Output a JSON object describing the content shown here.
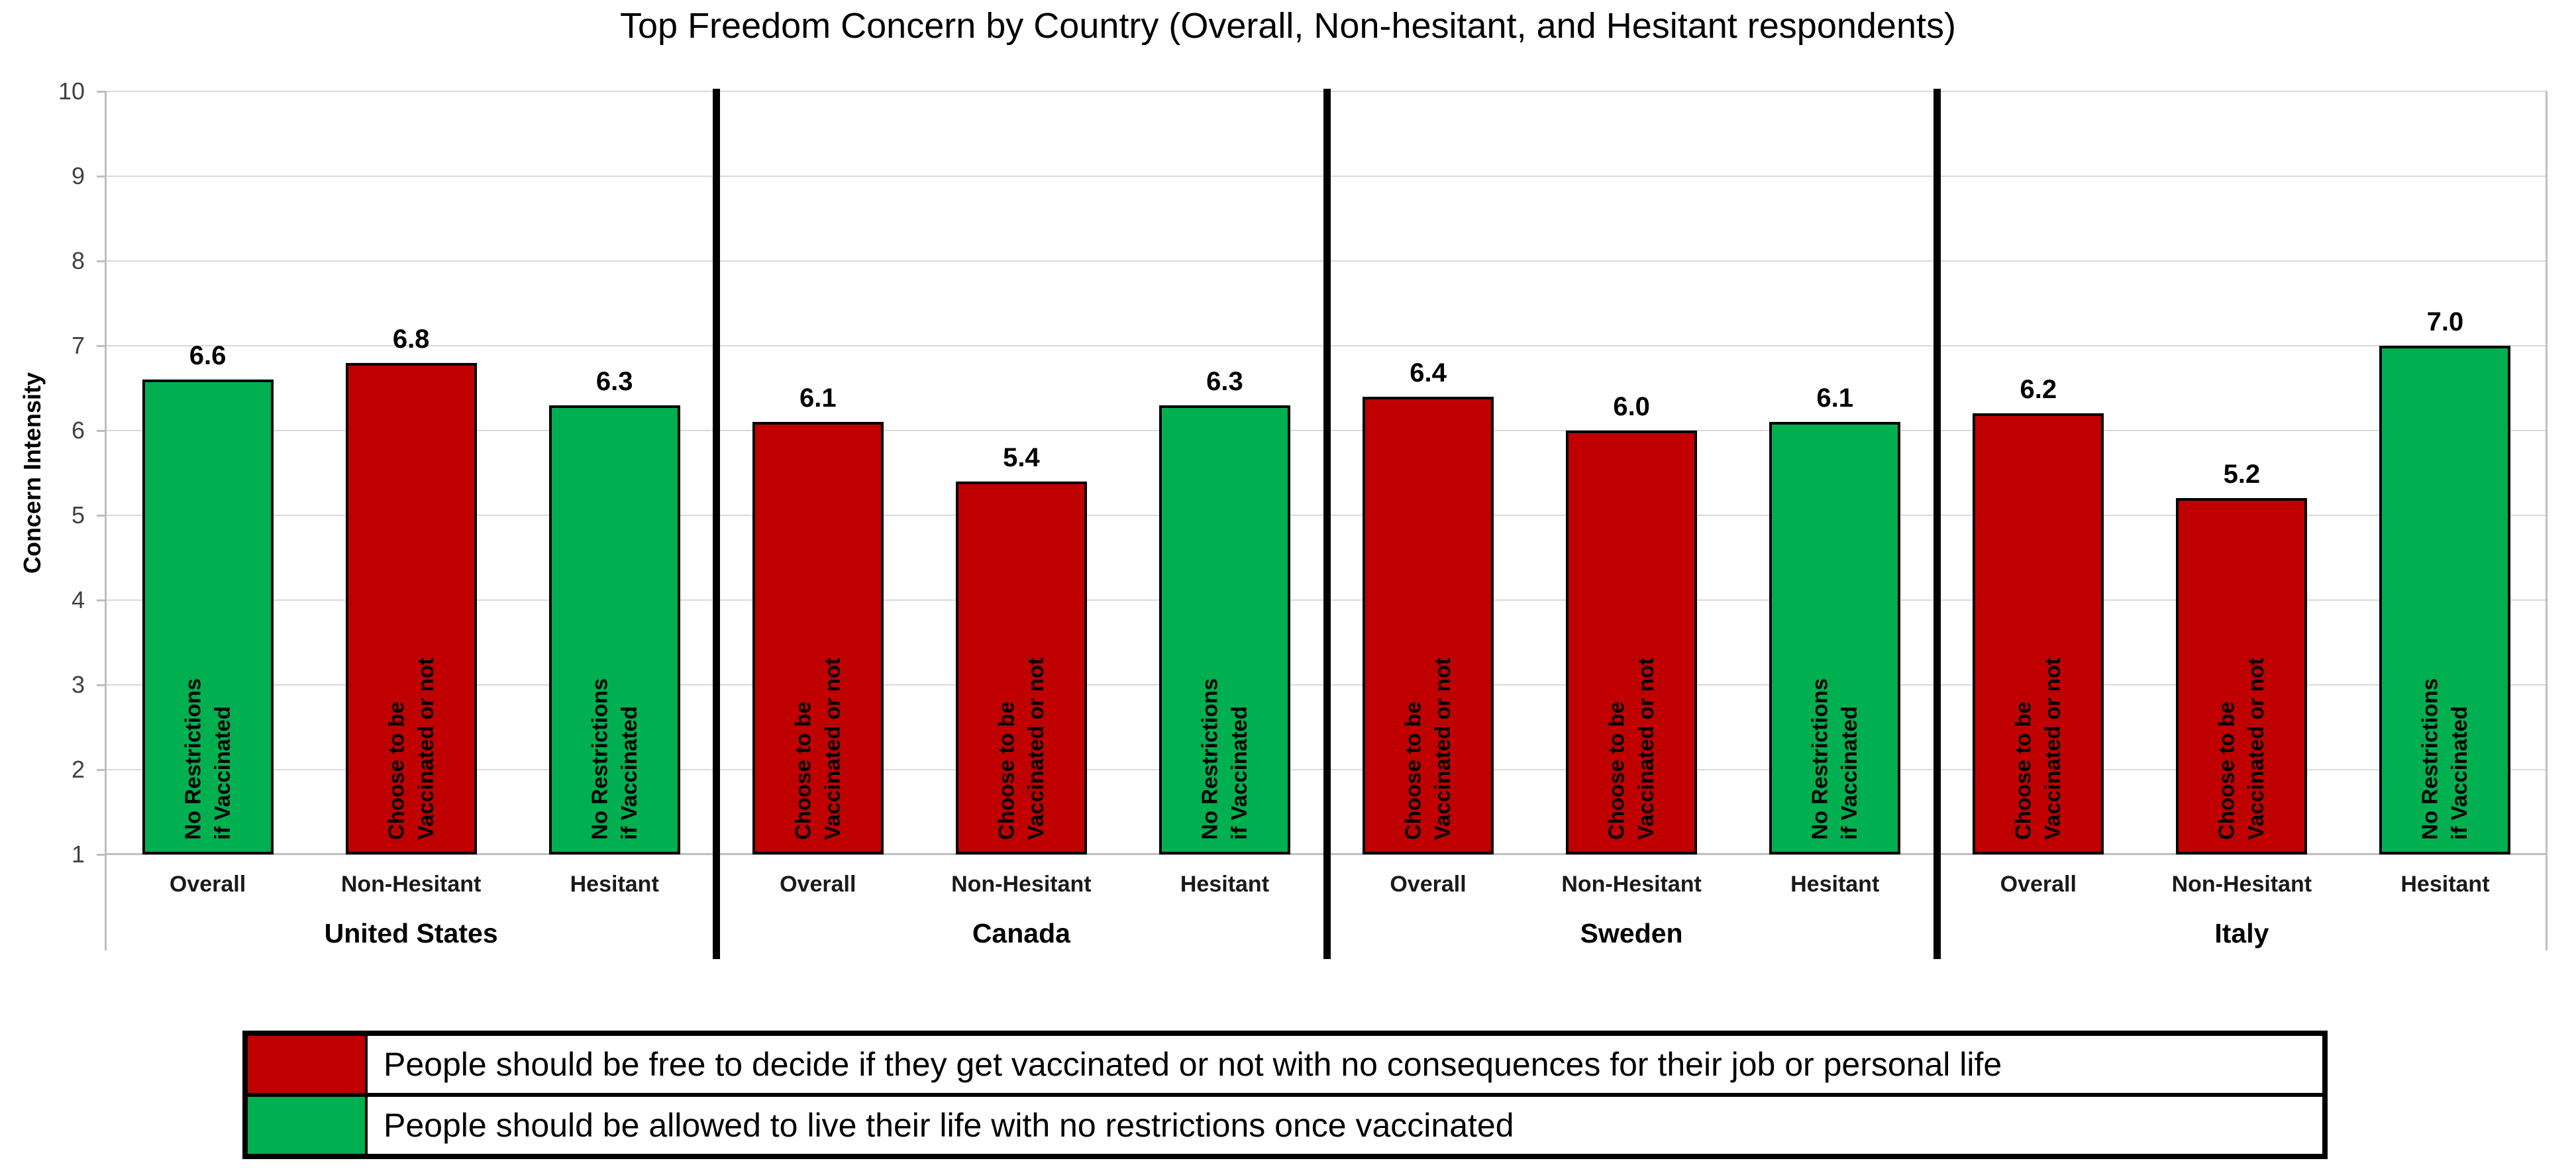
{
  "title": "Top Freedom Concern by Country (Overall, Non-hesitant, and Hesitant respondents)",
  "chart_data": {
    "type": "bar",
    "title": "Top Freedom Concern by Country (Overall, Non-hesitant, and Hesitant respondents)",
    "ylabel": "Concern Intensity",
    "xlabel": "",
    "ylim": [
      1,
      10
    ],
    "yticks": [
      1,
      2,
      3,
      4,
      5,
      6,
      7,
      8,
      9,
      10
    ],
    "grid": true,
    "legend_position": "bottom",
    "categories_per_group": [
      "Overall",
      "Non-Hesitant",
      "Hesitant"
    ],
    "colors": {
      "choose": "#C00000",
      "no_restrictions": "#00B050"
    },
    "bar_text": {
      "choose": [
        "Choose to be",
        "Vaccinated or not"
      ],
      "no_restrictions": [
        "No Restrictions",
        "if Vaccinated"
      ]
    },
    "groups": [
      {
        "country": "United States",
        "bars": [
          {
            "category": "Overall",
            "value": 6.6,
            "label": "6.6",
            "concern": "no_restrictions"
          },
          {
            "category": "Non-Hesitant",
            "value": 6.8,
            "label": "6.8",
            "concern": "choose"
          },
          {
            "category": "Hesitant",
            "value": 6.3,
            "label": "6.3",
            "concern": "no_restrictions"
          }
        ]
      },
      {
        "country": "Canada",
        "bars": [
          {
            "category": "Overall",
            "value": 6.1,
            "label": "6.1",
            "concern": "choose"
          },
          {
            "category": "Non-Hesitant",
            "value": 5.4,
            "label": "5.4",
            "concern": "choose"
          },
          {
            "category": "Hesitant",
            "value": 6.3,
            "label": "6.3",
            "concern": "no_restrictions"
          }
        ]
      },
      {
        "country": "Sweden",
        "bars": [
          {
            "category": "Overall",
            "value": 6.4,
            "label": "6.4",
            "concern": "choose"
          },
          {
            "category": "Non-Hesitant",
            "value": 6.0,
            "label": "6.0",
            "concern": "choose"
          },
          {
            "category": "Hesitant",
            "value": 6.1,
            "label": "6.1",
            "concern": "no_restrictions"
          }
        ]
      },
      {
        "country": "Italy",
        "bars": [
          {
            "category": "Overall",
            "value": 6.2,
            "label": "6.2",
            "concern": "choose"
          },
          {
            "category": "Non-Hesitant",
            "value": 5.2,
            "label": "5.2",
            "concern": "choose"
          },
          {
            "category": "Hesitant",
            "value": 7.0,
            "label": "7.0",
            "concern": "no_restrictions"
          }
        ]
      }
    ],
    "legend": [
      {
        "swatch": "#C00000",
        "label": "People should be free to decide if they get vaccinated or not with no consequences for their job or personal life"
      },
      {
        "swatch": "#00B050",
        "label": "People should be allowed to live their life with no restrictions once vaccinated"
      }
    ]
  }
}
